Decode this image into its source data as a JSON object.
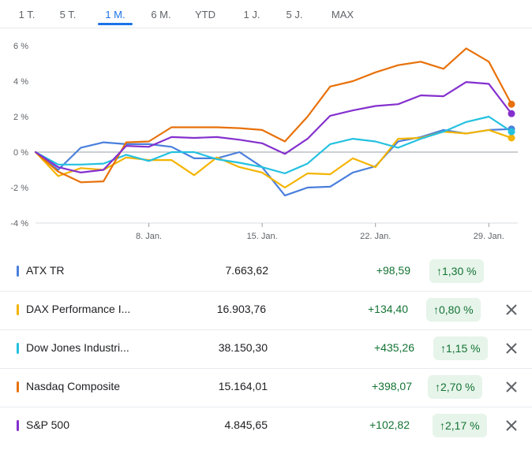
{
  "tabs": [
    {
      "label": "1 T.",
      "active": false
    },
    {
      "label": "5 T.",
      "active": false
    },
    {
      "label": "1 M.",
      "active": true
    },
    {
      "label": "6 M.",
      "active": false
    },
    {
      "label": "YTD",
      "active": false
    },
    {
      "label": "1 J.",
      "active": false
    },
    {
      "label": "5 J.",
      "active": false
    },
    {
      "label": "MAX",
      "active": false
    }
  ],
  "chart_data": {
    "type": "line",
    "x_labels": [
      "8. Jan.",
      "15. Jan.",
      "22. Jan.",
      "29. Jan."
    ],
    "ylim": [
      -4,
      6
    ],
    "y_ticks": [
      "6 %",
      "4 %",
      "2 %",
      "0 %",
      "-2 %",
      "-4 %"
    ],
    "grid": false,
    "series": [
      {
        "name": "ATX TR",
        "color": "#4a7fdc",
        "values": [
          0,
          -1.0,
          0.25,
          0.55,
          0.45,
          0.45,
          0.3,
          -0.35,
          -0.35,
          0.0,
          -0.85,
          -2.45,
          -2.0,
          -1.95,
          -1.15,
          -0.8,
          0.6,
          0.85,
          1.25,
          1.05,
          1.25,
          1.3
        ]
      },
      {
        "name": "DAX Performance Index",
        "color": "#f4b400",
        "values": [
          0,
          -1.35,
          -0.9,
          -1.0,
          -0.3,
          -0.45,
          -0.45,
          -1.3,
          -0.3,
          -0.85,
          -1.15,
          -2.0,
          -1.2,
          -1.25,
          -0.35,
          -0.85,
          0.75,
          0.8,
          1.15,
          1.05,
          1.25,
          0.8
        ]
      },
      {
        "name": "Dow Jones Industrial Average",
        "color": "#24c1e0",
        "values": [
          0,
          -0.7,
          -0.7,
          -0.65,
          -0.15,
          -0.5,
          0.0,
          0.0,
          -0.4,
          -0.6,
          -0.85,
          -1.2,
          -0.65,
          0.45,
          0.75,
          0.6,
          0.25,
          0.75,
          1.15,
          1.7,
          2.0,
          1.15
        ]
      },
      {
        "name": "Nasdaq Composite",
        "color": "#e8710a",
        "values": [
          0,
          -1.1,
          -1.7,
          -1.65,
          0.55,
          0.6,
          1.4,
          1.4,
          1.4,
          1.35,
          1.25,
          0.6,
          2.0,
          3.7,
          4.0,
          4.5,
          4.9,
          5.1,
          4.7,
          5.85,
          5.1,
          2.7
        ]
      },
      {
        "name": "S&P 500",
        "color": "#8430ce",
        "values": [
          0,
          -0.85,
          -1.15,
          -1.0,
          0.35,
          0.3,
          0.85,
          0.8,
          0.85,
          0.7,
          0.5,
          -0.1,
          0.75,
          2.05,
          2.35,
          2.6,
          2.7,
          3.2,
          3.15,
          3.95,
          3.85,
          2.17
        ]
      }
    ]
  },
  "rows": [
    {
      "name": "ATX TR",
      "price": "7.663,62",
      "change": "+98,59",
      "pct": "1,30 %",
      "color": "#4a7fdc",
      "removable": false
    },
    {
      "name": "DAX Performance I...",
      "price": "16.903,76",
      "change": "+134,40",
      "pct": "0,80 %",
      "color": "#f4b400",
      "removable": true
    },
    {
      "name": "Dow Jones Industri...",
      "price": "38.150,30",
      "change": "+435,26",
      "pct": "1,15 %",
      "color": "#24c1e0",
      "removable": true
    },
    {
      "name": "Nasdaq Composite",
      "price": "15.164,01",
      "change": "+398,07",
      "pct": "2,70 %",
      "color": "#e8710a",
      "removable": true
    },
    {
      "name": "S&P 500",
      "price": "4.845,65",
      "change": "+102,82",
      "pct": "2,17 %",
      "color": "#8430ce",
      "removable": true
    }
  ],
  "icons": {
    "up": "arrow-up-icon",
    "close": "close-icon"
  }
}
